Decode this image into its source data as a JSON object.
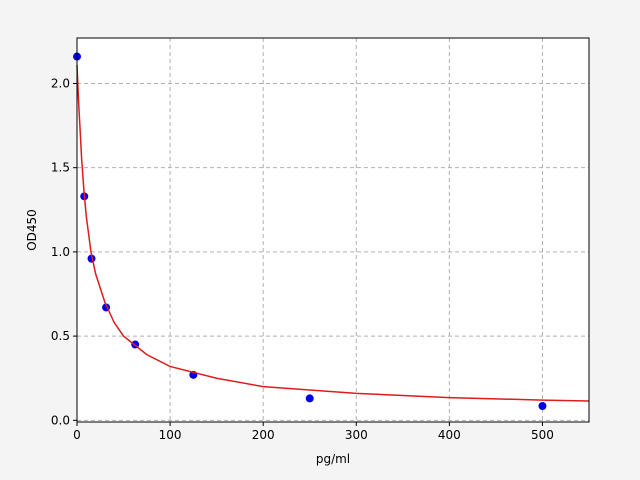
{
  "chart_data": {
    "type": "scatter",
    "xlabel": "pg/ml",
    "ylabel": "OD450",
    "xlim": [
      0,
      550
    ],
    "ylim": [
      -0.01,
      2.27
    ],
    "xticks": [
      0,
      100,
      200,
      300,
      400,
      500
    ],
    "yticks": [
      {
        "value": 0,
        "label": "0.0"
      },
      0.5,
      {
        "value": 1,
        "label": "1.0"
      },
      1.5,
      {
        "value": 2,
        "label": "2.0"
      }
    ],
    "grid": true,
    "series": [
      {
        "type": "scatter",
        "color": "#0000ee",
        "x": [
          0,
          7.8,
          15.6,
          31.25,
          62.5,
          125,
          250,
          500
        ],
        "values": [
          2.16,
          1.33,
          0.96,
          0.67,
          0.45,
          0.27,
          0.13,
          0.085
        ]
      },
      {
        "type": "line",
        "color": "#dd1c1c",
        "x": [
          0,
          1,
          2,
          3,
          5,
          7.5,
          10,
          15,
          20,
          30,
          40,
          50,
          75,
          100,
          150,
          200,
          300,
          400,
          500,
          550
        ],
        "values": [
          2.11,
          1.98,
          1.86,
          1.76,
          1.55,
          1.36,
          1.21,
          1.0,
          0.87,
          0.7,
          0.58,
          0.5,
          0.39,
          0.32,
          0.25,
          0.2,
          0.16,
          0.135,
          0.12,
          0.115
        ]
      }
    ]
  }
}
